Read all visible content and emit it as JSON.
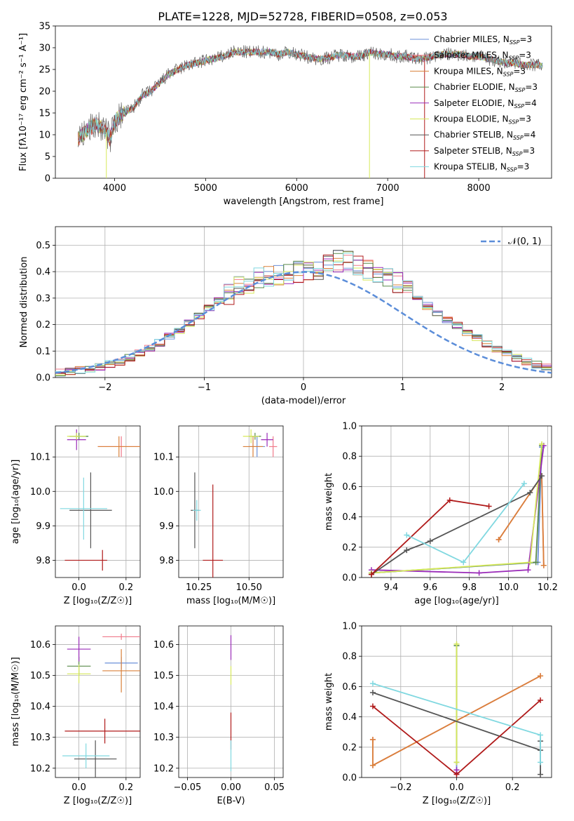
{
  "title": "PLATE=1228, MJD=52728, FIBERID=0508, z=0.053",
  "colors": {
    "Chabrier MILES": "#6b8fd8",
    "Salpeter MILES": "#f07a8a",
    "Kroupa MILES": "#d9803a",
    "Chabrier ELODIE": "#5a8a4a",
    "Salpeter ELODIE": "#9a2bb8",
    "Kroupa ELODIE": "#d6e85a",
    "Chabrier STELIB": "#555555",
    "Salpeter STELIB": "#b01a1a",
    "Kroupa STELIB": "#80d8e0",
    "normal": "#5b8dd9"
  },
  "chart_data": [
    {
      "id": "spectrum",
      "type": "line",
      "title": "PLATE=1228, MJD=52728, FIBERID=0508, z=0.053",
      "xlabel": "wavelength [Angstrom, rest frame]",
      "ylabel": "Flux [fλ10⁻¹⁷ erg cm⁻² s⁻¹ A⁻¹]",
      "xlim": [
        3350,
        8800
      ],
      "ylim": [
        0,
        35
      ],
      "xticks": [
        4000,
        5000,
        6000,
        7000,
        8000
      ],
      "yticks": [
        0,
        5,
        10,
        15,
        20,
        25,
        30,
        35
      ],
      "legend": [
        {
          "label": "Chabrier MILES, NSSP=3",
          "color": "#6b8fd8"
        },
        {
          "label": "Salpeter MILES, NSSP=3",
          "color": "#f07a8a"
        },
        {
          "label": "Kroupa MILES, NSSP=3",
          "color": "#d9803a"
        },
        {
          "label": "Chabrier ELODIE, NSSP=3",
          "color": "#5a8a4a"
        },
        {
          "label": "Salpeter ELODIE, NSSP=4",
          "color": "#9a2bb8"
        },
        {
          "label": "Kroupa ELODIE, NSSP=3",
          "color": "#d6e85a"
        },
        {
          "label": "Chabrier STELIB, NSSP=4",
          "color": "#555555"
        },
        {
          "label": "Salpeter STELIB, NSSP=3",
          "color": "#b01a1a"
        },
        {
          "label": "Kroupa STELIB, NSSP=3",
          "color": "#80d8e0"
        }
      ],
      "envelope": {
        "x": [
          3600,
          3700,
          3800,
          3900,
          3950,
          4000,
          4100,
          4200,
          4300,
          4400,
          4500,
          4600,
          4700,
          4800,
          4900,
          5000,
          5100,
          5200,
          5300,
          5400,
          5500,
          5600,
          5700,
          5800,
          5900,
          6000,
          6100,
          6200,
          6300,
          6400,
          6500,
          6600,
          6700,
          6800,
          6900,
          7000,
          7100,
          7200,
          7300,
          7400,
          7500,
          7600,
          7700,
          7800,
          7900,
          8000,
          8100,
          8200,
          8300,
          8400,
          8500,
          8600,
          8700
        ],
        "y": [
          9,
          11,
          12.5,
          11,
          9,
          13,
          15,
          16,
          19,
          20,
          22,
          24,
          25,
          26,
          26.5,
          27,
          27.5,
          28,
          29,
          29,
          29,
          29,
          29,
          28.5,
          29,
          28.5,
          28,
          27.5,
          27.5,
          28,
          28.5,
          28,
          28,
          29,
          28.5,
          28.5,
          28,
          28,
          27.5,
          27.5,
          28,
          28.5,
          28.5,
          28.5,
          28,
          28,
          27.5,
          27,
          26.5,
          26.5,
          26,
          26,
          26
        ]
      },
      "dips": [
        {
          "x": 3910,
          "y": 0,
          "color": "#d6e85a"
        },
        {
          "x": 6800,
          "y": 0,
          "color": "#d6e85a"
        },
        {
          "x": 7405,
          "y": 0,
          "color": "#b01a1a"
        }
      ]
    },
    {
      "id": "residuals",
      "type": "histogram",
      "xlabel": "(data-model)/error",
      "ylabel": "Normed distribution",
      "xlim": [
        -2.5,
        2.5
      ],
      "ylim": [
        0,
        0.57
      ],
      "xticks": [
        -2,
        -1,
        0,
        1,
        2
      ],
      "yticks": [
        0.0,
        0.1,
        0.2,
        0.3,
        0.4,
        0.5
      ],
      "bin_edges_start": -2.5,
      "bin_width": 0.1,
      "mean_counts": [
        0.02,
        0.022,
        0.028,
        0.033,
        0.04,
        0.05,
        0.06,
        0.075,
        0.09,
        0.11,
        0.13,
        0.155,
        0.18,
        0.205,
        0.235,
        0.26,
        0.29,
        0.315,
        0.34,
        0.36,
        0.375,
        0.385,
        0.39,
        0.395,
        0.4,
        0.405,
        0.41,
        0.43,
        0.44,
        0.435,
        0.42,
        0.41,
        0.4,
        0.38,
        0.355,
        0.33,
        0.3,
        0.27,
        0.245,
        0.22,
        0.195,
        0.17,
        0.15,
        0.125,
        0.105,
        0.09,
        0.075,
        0.06,
        0.048,
        0.038
      ],
      "legend": [
        {
          "label": "𝒩(0, 1)",
          "color": "#5b8dd9",
          "style": "dashed"
        }
      ]
    },
    {
      "id": "age-vs-Z",
      "type": "errorbar",
      "xlabel": "Z [log₁₀(Z/Z☉)]",
      "ylabel": "age  [log₁₀(age/yr)]",
      "xlim": [
        -0.1,
        0.26
      ],
      "ylim": [
        9.75,
        10.19
      ],
      "xticks": [
        0.0,
        0.2
      ],
      "yticks": [
        9.8,
        9.9,
        10.0,
        10.1
      ],
      "points": [
        {
          "x": 0.0,
          "y": 10.16,
          "xerr": 0.04,
          "yerr": 0.01,
          "color": "#6b8fd8"
        },
        {
          "x": 0.18,
          "y": 10.13,
          "xerr": 0.1,
          "yerr": 0.03,
          "color": "#f07a8a"
        },
        {
          "x": 0.17,
          "y": 10.13,
          "xerr": 0.09,
          "yerr": 0.03,
          "color": "#d9803a"
        },
        {
          "x": 0.0,
          "y": 10.16,
          "xerr": 0.04,
          "yerr": 0.01,
          "color": "#5a8a4a"
        },
        {
          "x": -0.01,
          "y": 10.15,
          "xerr": 0.04,
          "yerr": 0.03,
          "color": "#9a2bb8"
        },
        {
          "x": -0.01,
          "y": 10.16,
          "xerr": 0.04,
          "yerr": 0.01,
          "color": "#d6e85a"
        },
        {
          "x": 0.05,
          "y": 9.945,
          "xerr": 0.09,
          "yerr": 0.11,
          "color": "#555555"
        },
        {
          "x": 0.03,
          "y": 9.8,
          "xerr": 0.09,
          "yerr": 0.0,
          "color": "#b01a1a"
        },
        {
          "x": 0.1,
          "y": 9.8,
          "xerr": 0.0,
          "yerr": 0.03,
          "color": "#b01a1a"
        },
        {
          "x": 0.02,
          "y": 9.95,
          "xerr": 0.1,
          "yerr": 0.09,
          "color": "#80d8e0"
        }
      ]
    },
    {
      "id": "age-vs-mass",
      "type": "errorbar",
      "xlabel": "mass [log₁₀(M/M☉)]",
      "ylabel": "",
      "xlim": [
        10.15,
        10.67
      ],
      "ylim": [
        9.75,
        10.19
      ],
      "xticks": [
        10.25,
        10.5
      ],
      "yticks": [
        9.8,
        9.9,
        10.0,
        10.1
      ],
      "points": [
        {
          "x": 10.54,
          "y": 10.13,
          "xerr": 0.04,
          "yerr": 0.03,
          "color": "#6b8fd8"
        },
        {
          "x": 10.62,
          "y": 10.13,
          "xerr": 0.02,
          "yerr": 0.03,
          "color": "#f07a8a"
        },
        {
          "x": 10.52,
          "y": 10.13,
          "xerr": 0.05,
          "yerr": 0.03,
          "color": "#d9803a"
        },
        {
          "x": 10.53,
          "y": 10.16,
          "xerr": 0.03,
          "yerr": 0.01,
          "color": "#5a8a4a"
        },
        {
          "x": 10.59,
          "y": 10.15,
          "xerr": 0.03,
          "yerr": 0.02,
          "color": "#9a2bb8"
        },
        {
          "x": 10.51,
          "y": 10.16,
          "xerr": 0.04,
          "yerr": 0.02,
          "color": "#d6e85a"
        },
        {
          "x": 10.23,
          "y": 9.945,
          "xerr": 0.02,
          "yerr": 0.11,
          "color": "#555555"
        },
        {
          "x": 10.32,
          "y": 9.8,
          "xerr": 0.05,
          "yerr": 0.22,
          "color": "#b01a1a"
        },
        {
          "x": 10.24,
          "y": 9.945,
          "xerr": 0.02,
          "yerr": 0.03,
          "color": "#80d8e0"
        }
      ]
    },
    {
      "id": "massweight-vs-age",
      "type": "line",
      "xlabel": "age  [log₁₀(age/yr)]",
      "ylabel": "mass weight",
      "xlim": [
        9.25,
        10.22
      ],
      "ylim": [
        0,
        1.0
      ],
      "xticks": [
        9.4,
        9.6,
        9.8,
        10.0,
        10.2
      ],
      "yticks": [
        0.0,
        0.2,
        0.4,
        0.6,
        0.8,
        1.0
      ],
      "series": [
        {
          "color": "#6b8fd8",
          "x": [
            9.3,
            10.15,
            10.17
          ],
          "y": [
            0.03,
            0.1,
            0.86
          ]
        },
        {
          "color": "#f07a8a",
          "x": [
            9.95,
            10.17,
            10.18
          ],
          "y": [
            0.25,
            0.67,
            0.08
          ]
        },
        {
          "color": "#d9803a",
          "x": [
            9.95,
            10.17,
            10.18
          ],
          "y": [
            0.25,
            0.67,
            0.08
          ]
        },
        {
          "color": "#5a8a4a",
          "x": [
            9.3,
            10.14,
            10.17
          ],
          "y": [
            0.03,
            0.1,
            0.87
          ]
        },
        {
          "color": "#9a2bb8",
          "x": [
            9.3,
            9.85,
            10.1,
            10.18
          ],
          "y": [
            0.05,
            0.03,
            0.05,
            0.87
          ]
        },
        {
          "color": "#d6e85a",
          "x": [
            9.3,
            10.11,
            10.17
          ],
          "y": [
            0.03,
            0.1,
            0.88
          ]
        },
        {
          "color": "#555555",
          "x": [
            9.3,
            9.48,
            9.6,
            10.11,
            10.17
          ],
          "y": [
            0.02,
            0.18,
            0.24,
            0.56,
            0.67
          ]
        },
        {
          "color": "#b01a1a",
          "x": [
            9.3,
            9.7,
            9.9
          ],
          "y": [
            0.02,
            0.51,
            0.47
          ]
        },
        {
          "color": "#80d8e0",
          "x": [
            9.48,
            9.77,
            10.08
          ],
          "y": [
            0.28,
            0.1,
            0.62
          ]
        }
      ]
    },
    {
      "id": "mass-vs-Z",
      "type": "errorbar",
      "xlabel": "Z [log₁₀(Z/Z☉)]",
      "ylabel": "mass [log₁₀(M/M☉)]",
      "xlim": [
        -0.1,
        0.26
      ],
      "ylim": [
        10.17,
        10.66
      ],
      "xticks": [
        0.0,
        0.2
      ],
      "yticks": [
        10.2,
        10.3,
        10.4,
        10.5,
        10.6
      ],
      "points": [
        {
          "x": 0.18,
          "y": 10.54,
          "xerr": 0.07,
          "yerr": 0.02,
          "color": "#6b8fd8"
        },
        {
          "x": 0.18,
          "y": 10.625,
          "xerr": 0.08,
          "yerr": 0.01,
          "color": "#f07a8a"
        },
        {
          "x": 0.18,
          "y": 10.515,
          "xerr": 0.08,
          "yerr": 0.07,
          "color": "#d9803a"
        },
        {
          "x": 0.0,
          "y": 10.53,
          "xerr": 0.05,
          "yerr": 0.03,
          "color": "#5a8a4a"
        },
        {
          "x": 0.0,
          "y": 10.585,
          "xerr": 0.05,
          "yerr": 0.04,
          "color": "#9a2bb8"
        },
        {
          "x": 0.0,
          "y": 10.505,
          "xerr": 0.05,
          "yerr": 0.03,
          "color": "#d6e85a"
        },
        {
          "x": 0.07,
          "y": 10.23,
          "xerr": 0.09,
          "yerr": 0.06,
          "color": "#555555"
        },
        {
          "x": 0.11,
          "y": 10.32,
          "xerr": 0.17,
          "yerr": 0.04,
          "color": "#b01a1a"
        },
        {
          "x": 0.03,
          "y": 10.24,
          "xerr": 0.1,
          "yerr": 0.04,
          "color": "#80d8e0"
        }
      ]
    },
    {
      "id": "mass-vs-ebv",
      "type": "errorbar",
      "xlabel": "E(B-V)",
      "ylabel": "",
      "xlim": [
        -0.06,
        0.06
      ],
      "ylim": [
        10.17,
        10.66
      ],
      "xticks": [
        -0.05,
        0.0,
        0.05
      ],
      "yticks": [
        10.2,
        10.3,
        10.4,
        10.5,
        10.6
      ],
      "points": [
        {
          "x": 0.0,
          "y": 10.59,
          "xerr": 0.0,
          "yerr": 0.04,
          "color": "#9a2bb8"
        },
        {
          "x": 0.0,
          "y": 10.5,
          "xerr": 0.0,
          "yerr": 0.03,
          "color": "#d6e85a"
        },
        {
          "x": 0.0,
          "y": 10.32,
          "xerr": 0.0,
          "yerr": 0.06,
          "color": "#b01a1a"
        },
        {
          "x": 0.0,
          "y": 10.24,
          "xerr": 0.0,
          "yerr": 0.05,
          "color": "#80d8e0"
        }
      ]
    },
    {
      "id": "massweight-vs-Z",
      "type": "line",
      "xlabel": "Z [log₁₀(Z/Z☉)]",
      "ylabel": "mass weight",
      "xlim": [
        -0.34,
        0.34
      ],
      "ylim": [
        0,
        1.0
      ],
      "xticks": [
        -0.2,
        0.0,
        0.2
      ],
      "yticks": [
        0.0,
        0.2,
        0.4,
        0.6,
        0.8,
        1.0
      ],
      "series": [
        {
          "color": "#6b8fd8",
          "x": [
            0.0,
            0.0
          ],
          "y": [
            0.03,
            0.87
          ]
        },
        {
          "color": "#f07a8a",
          "x": [
            -0.3,
            -0.3,
            0.3
          ],
          "y": [
            0.25,
            0.08,
            0.67
          ]
        },
        {
          "color": "#d9803a",
          "x": [
            -0.3,
            -0.3,
            0.3
          ],
          "y": [
            0.25,
            0.08,
            0.67
          ]
        },
        {
          "color": "#5a8a4a",
          "x": [
            0.0,
            0.0
          ],
          "y": [
            0.1,
            0.87
          ]
        },
        {
          "color": "#9a2bb8",
          "x": [
            0.0,
            0.0
          ],
          "y": [
            0.03,
            0.05
          ]
        },
        {
          "color": "#d6e85a",
          "x": [
            0.0,
            0.0
          ],
          "y": [
            0.1,
            0.88
          ]
        },
        {
          "color": "#555555",
          "x": [
            -0.3,
            0.3,
            0.3,
            0.3
          ],
          "y": [
            0.56,
            0.18,
            0.24,
            0.02
          ]
        },
        {
          "color": "#b01a1a",
          "x": [
            -0.3,
            0.0,
            0.3
          ],
          "y": [
            0.47,
            0.02,
            0.51
          ]
        },
        {
          "color": "#80d8e0",
          "x": [
            -0.3,
            0.3,
            0.3
          ],
          "y": [
            0.62,
            0.28,
            0.1
          ]
        }
      ]
    }
  ]
}
